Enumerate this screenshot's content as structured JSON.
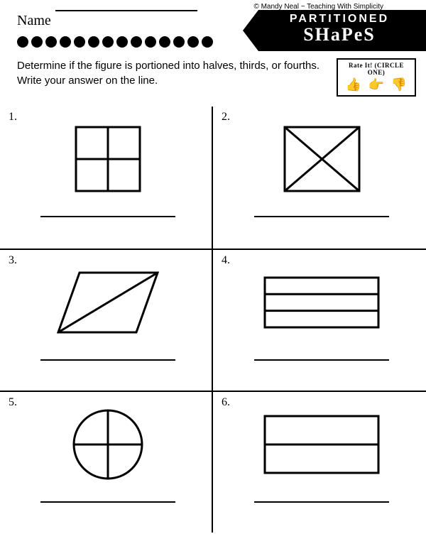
{
  "copyright": "© Mandy Neal ~ Teaching With Simplicity",
  "name_label": "Name",
  "title_line1": "PARTITIONED",
  "title_line2": "SHaPeS",
  "dot_count": 14,
  "instructions": "Determine if the figure is portioned into halves, thirds, or fourths. Write your answer on the line.",
  "rate_title": "Rate It! (CIRCLE ONE)",
  "cells": [
    {
      "num": "1.",
      "shape": "square_grid"
    },
    {
      "num": "2.",
      "shape": "square_x"
    },
    {
      "num": "3.",
      "shape": "parallelogram_diag"
    },
    {
      "num": "4.",
      "shape": "rect_thirds"
    },
    {
      "num": "5.",
      "shape": "circle_quarters"
    },
    {
      "num": "6.",
      "shape": "rect_half"
    }
  ],
  "stroke": "#000000",
  "stroke_width": 3
}
